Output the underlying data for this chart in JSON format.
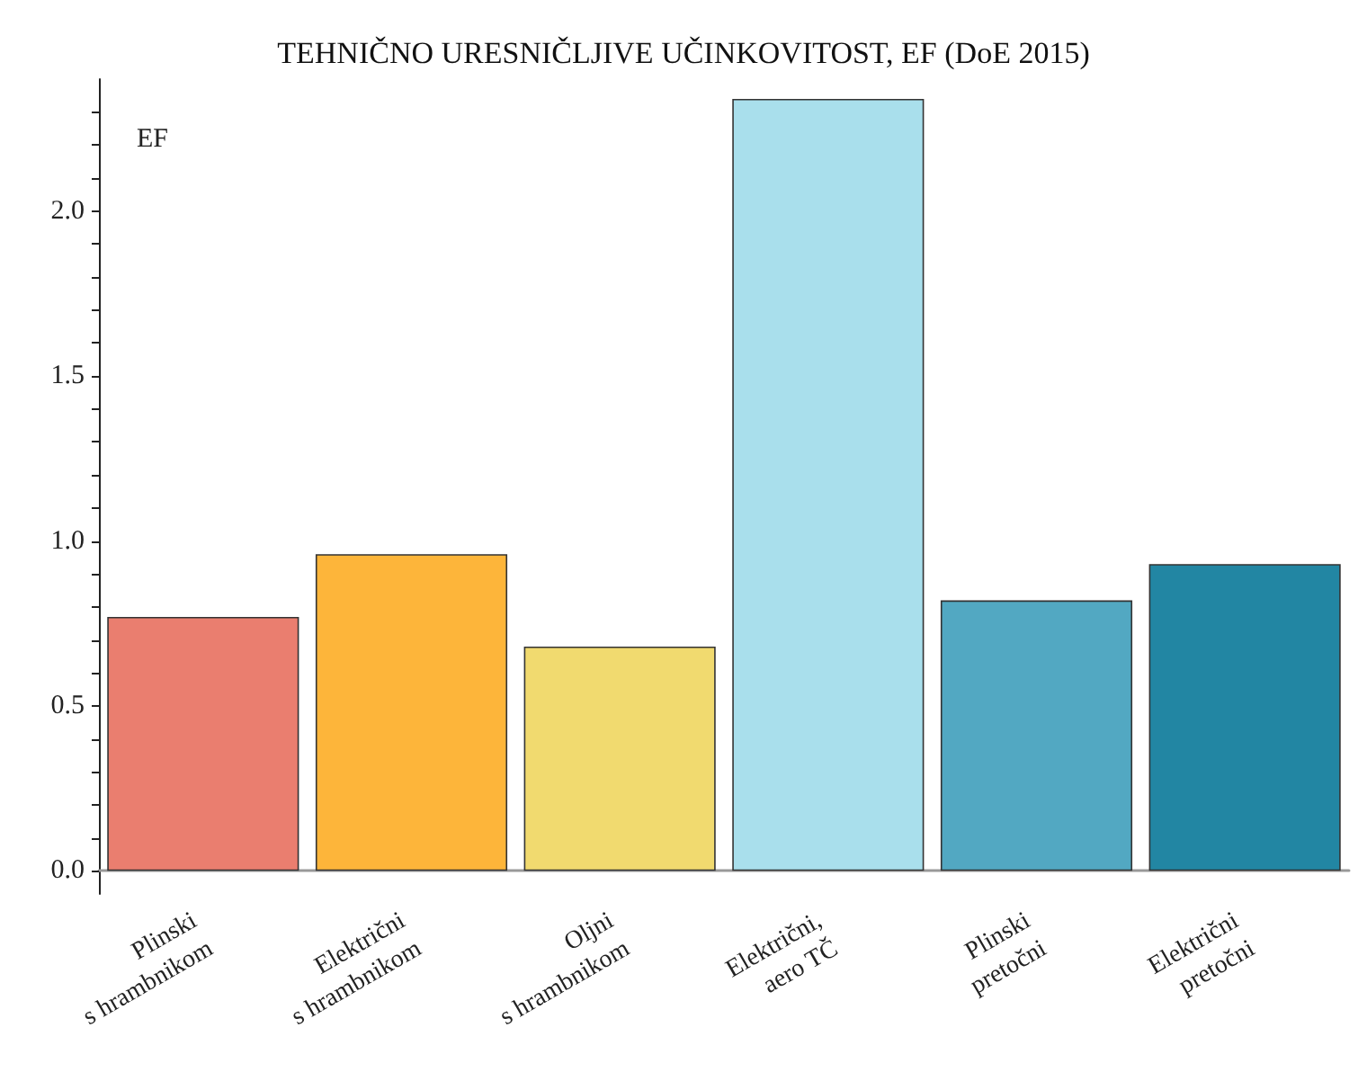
{
  "chart_data": {
    "type": "bar",
    "title": "TEHNIČNO URESNIČLJIVE UČINKOVITOST, EF (DoE 2015)",
    "ylabel": "EF",
    "categories": [
      "Plinski\ns hrambnikom",
      "Električni\ns hrambnikom",
      "Oljni\ns hrambnikom",
      "Električni,\naero TČ",
      "Plinski\npretočni",
      "Električni\npretočni"
    ],
    "values": [
      0.77,
      0.96,
      0.68,
      2.34,
      0.82,
      0.93
    ],
    "colors": [
      "#ea7e6f",
      "#fdb53a",
      "#f1da6f",
      "#a9dfec",
      "#52a8c2",
      "#2286a3"
    ],
    "ylim": [
      -0.07,
      2.4
    ],
    "yticks": [
      {
        "value": 0,
        "label": "0.0"
      },
      {
        "value": 0.1,
        "label": null
      },
      {
        "value": 0.2,
        "label": null
      },
      {
        "value": 0.3,
        "label": null
      },
      {
        "value": 0.4,
        "label": null
      },
      0.5,
      {
        "value": 0.6,
        "label": null
      },
      {
        "value": 0.7,
        "label": null
      },
      {
        "value": 0.8,
        "label": null
      },
      {
        "value": 0.9,
        "label": null
      },
      {
        "value": 1,
        "label": "1.0"
      },
      {
        "value": 1.1,
        "label": null
      },
      {
        "value": 1.2,
        "label": null
      },
      {
        "value": 1.3,
        "label": null
      },
      {
        "value": 1.4,
        "label": null
      },
      1.5,
      {
        "value": 1.6,
        "label": null
      },
      {
        "value": 1.7,
        "label": null
      },
      {
        "value": 1.8,
        "label": null
      },
      {
        "value": 1.9,
        "label": null
      },
      {
        "value": 2,
        "label": "2.0"
      },
      {
        "value": 2.1,
        "label": null
      },
      {
        "value": 2.2,
        "label": null
      },
      {
        "value": 2.3,
        "label": null
      }
    ],
    "grid": false
  }
}
